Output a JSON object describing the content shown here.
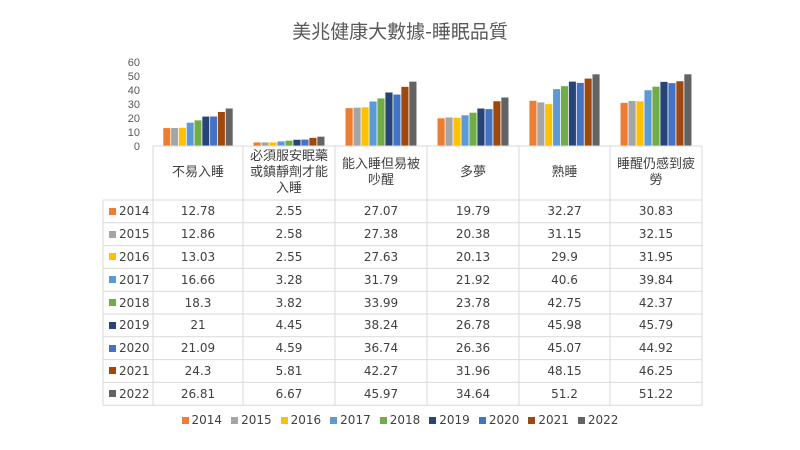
{
  "chart_data": {
    "type": "bar",
    "title": "美兆健康大數據-睡眠品質",
    "categories": [
      "不易入睡",
      "必須服安眠藥或鎮靜劑才能入睡",
      "能入睡但易被吵醒",
      "多夢",
      "熟睡",
      "睡醒仍感到疲勞"
    ],
    "category_lines": [
      [
        "不易入睡"
      ],
      [
        "必須服安眠藥",
        "或鎮靜劑才能",
        "入睡"
      ],
      [
        "能入睡但易被",
        "吵醒"
      ],
      [
        "多夢"
      ],
      [
        "熟睡"
      ],
      [
        "睡醒仍感到疲",
        "勞"
      ]
    ],
    "ylim": [
      0,
      60
    ],
    "yticks": [
      "0",
      "10",
      "20",
      "30",
      "40",
      "50",
      "60"
    ],
    "legend_position": "bottom",
    "data_table": true,
    "series": [
      {
        "name": "2014",
        "color": "#ED7D31",
        "values": [
          12.78,
          2.55,
          27.07,
          19.79,
          32.27,
          30.83
        ]
      },
      {
        "name": "2015",
        "color": "#A5A5A5",
        "values": [
          12.86,
          2.58,
          27.38,
          20.38,
          31.15,
          32.15
        ]
      },
      {
        "name": "2016",
        "color": "#FFC000",
        "values": [
          13.03,
          2.55,
          27.63,
          20.13,
          29.9,
          31.95
        ]
      },
      {
        "name": "2017",
        "color": "#5B9BD5",
        "values": [
          16.66,
          3.28,
          31.79,
          21.92,
          40.6,
          39.84
        ]
      },
      {
        "name": "2018",
        "color": "#70AD47",
        "values": [
          18.3,
          3.82,
          33.99,
          23.78,
          42.75,
          42.37
        ]
      },
      {
        "name": "2019",
        "color": "#264478",
        "values": [
          21,
          4.45,
          38.24,
          26.78,
          45.98,
          45.79
        ]
      },
      {
        "name": "2020",
        "color": "#4472C4",
        "values": [
          21.09,
          4.59,
          36.74,
          26.36,
          45.07,
          44.92
        ]
      },
      {
        "name": "2021",
        "color": "#9E480E",
        "values": [
          24.3,
          5.81,
          42.27,
          31.96,
          48.15,
          46.25
        ]
      },
      {
        "name": "2022",
        "color": "#636363",
        "values": [
          26.81,
          6.67,
          45.97,
          34.64,
          51.2,
          51.22
        ]
      }
    ]
  }
}
